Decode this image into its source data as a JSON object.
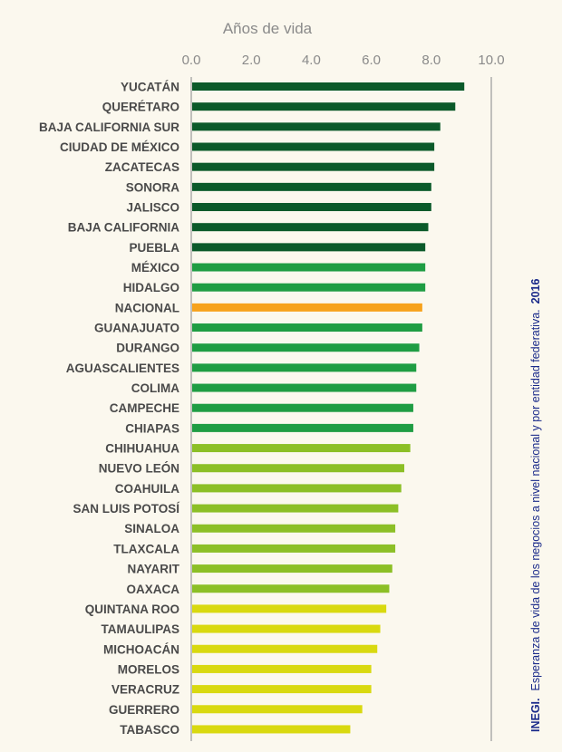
{
  "chart_data": {
    "type": "bar",
    "orientation": "horizontal",
    "title": "Años de vida",
    "xlim": [
      0,
      10
    ],
    "xticks": [
      "0.0",
      "2.0",
      "4.0",
      "6.0",
      "8.0",
      "10.0"
    ],
    "grid": false,
    "categories": [
      "YUCATÁN",
      "QUERÉTARO",
      "BAJA CALIFORNIA SUR",
      "CIUDAD DE MÉXICO",
      "ZACATECAS",
      "SONORA",
      "JALISCO",
      "BAJA CALIFORNIA",
      "PUEBLA",
      "MÉXICO",
      "HIDALGO",
      "NACIONAL",
      "GUANAJUATO",
      "DURANGO",
      "AGUASCALIENTES",
      "COLIMA",
      "CAMPECHE",
      "CHIAPAS",
      "CHIHUAHUA",
      "NUEVO LEÓN",
      "COAHUILA",
      "SAN LUIS POTOSÍ",
      "SINALOA",
      "TLAXCALA",
      "NAYARIT",
      "OAXACA",
      "QUINTANA ROO",
      "TAMAULIPAS",
      "MICHOACÁN",
      "MORELOS",
      "VERACRUZ",
      "GUERRERO",
      "TABASCO"
    ],
    "values": [
      9.1,
      8.8,
      8.3,
      8.1,
      8.1,
      8.0,
      8.0,
      7.9,
      7.8,
      7.8,
      7.8,
      7.7,
      7.7,
      7.6,
      7.5,
      7.5,
      7.4,
      7.4,
      7.3,
      7.1,
      7.0,
      6.9,
      6.8,
      6.8,
      6.7,
      6.6,
      6.5,
      6.3,
      6.2,
      6.0,
      6.0,
      5.7,
      5.3
    ],
    "bar_colors": [
      "#0b5a2a",
      "#0b5a2a",
      "#0b5a2a",
      "#0b5a2a",
      "#0b5a2a",
      "#0b5a2a",
      "#0b5a2a",
      "#0b5a2a",
      "#0b5a2a",
      "#1f9d43",
      "#1f9d43",
      "#f7a21b",
      "#1f9d43",
      "#1f9d43",
      "#1f9d43",
      "#1f9d43",
      "#1f9d43",
      "#1f9d43",
      "#8cbf26",
      "#8cbf26",
      "#8cbf26",
      "#8cbf26",
      "#8cbf26",
      "#8cbf26",
      "#8cbf26",
      "#8cbf26",
      "#d9d90f",
      "#d9d90f",
      "#d9d90f",
      "#d9d90f",
      "#d9d90f",
      "#d9d90f",
      "#d9d90f"
    ]
  },
  "caption": {
    "brand": "INEGI.",
    "text": "Esperanza de vida de los negocios a nivel nacional y por entidad federativa.",
    "year": "2016"
  },
  "colors": {
    "background": "#fbf8ee",
    "axis": "#9a9a9a",
    "caption": "#1a2a8a"
  }
}
